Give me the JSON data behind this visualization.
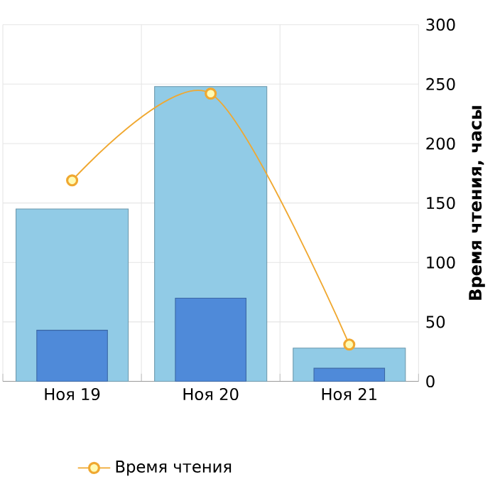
{
  "chart_data": {
    "type": "bar",
    "ylabel": "Время чтения, часы",
    "categories": [
      "Ноя 19",
      "Ноя 20",
      "Ноя 21"
    ],
    "series": [
      {
        "color": "#91cbe6",
        "values": [
          145,
          248,
          28
        ]
      },
      {
        "color": "#4f8ad9",
        "values": [
          43,
          70,
          11
        ]
      },
      {
        "type": "line",
        "name": "Время чтения",
        "color": "#f0a830",
        "values": [
          169,
          242,
          31
        ]
      }
    ],
    "ylim": [
      0,
      300
    ],
    "yticks": [
      0,
      50,
      100,
      150,
      200,
      250,
      300
    ],
    "grid": true,
    "legend": "bottom",
    "marker": "circle"
  }
}
